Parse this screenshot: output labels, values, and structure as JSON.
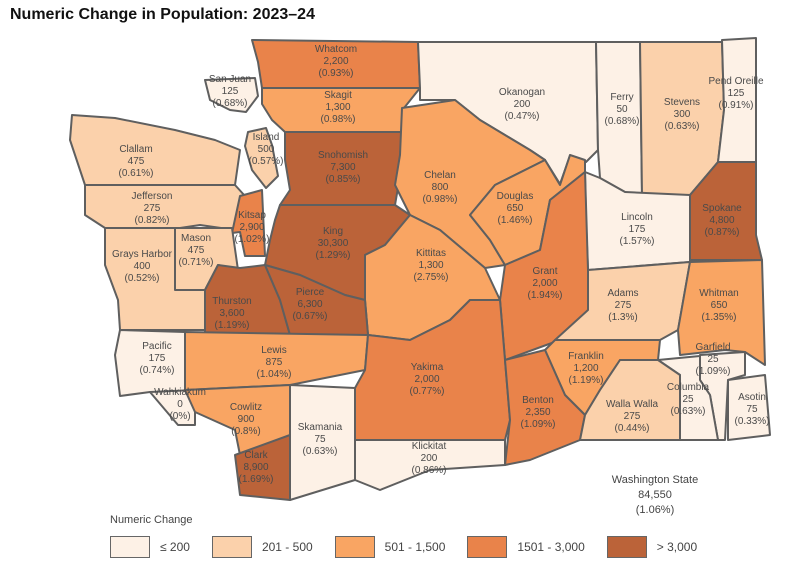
{
  "title": "Numeric Change in Population:  2023–24",
  "bins": [
    {
      "label": "≤ 200",
      "max": 200,
      "color": "#fdf1e6"
    },
    {
      "label": "201 - 500",
      "max": 500,
      "color": "#fbd1ab"
    },
    {
      "label": "501 - 1,500",
      "max": 1500,
      "color": "#f9a563"
    },
    {
      "label": "1501 - 3,000",
      "max": 3000,
      "color": "#e9834a"
    },
    {
      "label": "> 3,000",
      "max": 1000000,
      "color": "#bb6339"
    }
  ],
  "legend_title": "Numeric Change",
  "state": {
    "name": "Washington State",
    "value": "84,550",
    "pct": "(1.06%)"
  },
  "counties": [
    {
      "name": "Whatcom",
      "value": 2200,
      "value_text": "2,200",
      "pct": "(0.93%)"
    },
    {
      "name": "San Juan",
      "value": 125,
      "value_text": "125",
      "pct": "(0.68%)"
    },
    {
      "name": "Skagit",
      "value": 1300,
      "value_text": "1,300",
      "pct": "(0.98%)"
    },
    {
      "name": "Okanogan",
      "value": 200,
      "value_text": "200",
      "pct": "(0.47%)"
    },
    {
      "name": "Ferry",
      "value": 50,
      "value_text": "50",
      "pct": "(0.68%)"
    },
    {
      "name": "Stevens",
      "value": 300,
      "value_text": "300",
      "pct": "(0.63%)"
    },
    {
      "name": "Pend Oreille",
      "value": 125,
      "value_text": "125",
      "pct": "(0.91%)"
    },
    {
      "name": "Island",
      "value": 500,
      "value_text": "500",
      "pct": "(0.57%)"
    },
    {
      "name": "Clallam",
      "value": 475,
      "value_text": "475",
      "pct": "(0.61%)"
    },
    {
      "name": "Snohomish",
      "value": 7300,
      "value_text": "7,300",
      "pct": "(0.85%)"
    },
    {
      "name": "Chelan",
      "value": 800,
      "value_text": "800",
      "pct": "(0.98%)"
    },
    {
      "name": "Douglas",
      "value": 650,
      "value_text": "650",
      "pct": "(1.46%)"
    },
    {
      "name": "Lincoln",
      "value": 175,
      "value_text": "175",
      "pct": "(1.57%)"
    },
    {
      "name": "Spokane",
      "value": 4800,
      "value_text": "4,800",
      "pct": "(0.87%)"
    },
    {
      "name": "Jefferson",
      "value": 275,
      "value_text": "275",
      "pct": "(0.82%)"
    },
    {
      "name": "Kitsap",
      "value": 2900,
      "value_text": "2,900",
      "pct": "(1.02%)"
    },
    {
      "name": "King",
      "value": 30300,
      "value_text": "30,300",
      "pct": "(1.29%)"
    },
    {
      "name": "Mason",
      "value": 475,
      "value_text": "475",
      "pct": "(0.71%)"
    },
    {
      "name": "Grays Harbor",
      "value": 400,
      "value_text": "400",
      "pct": "(0.52%)"
    },
    {
      "name": "Grant",
      "value": 2000,
      "value_text": "2,000",
      "pct": "(1.94%)"
    },
    {
      "name": "Kittitas",
      "value": 1300,
      "value_text": "1,300",
      "pct": "(2.75%)"
    },
    {
      "name": "Adams",
      "value": 275,
      "value_text": "275",
      "pct": "(1.3%)"
    },
    {
      "name": "Whitman",
      "value": 650,
      "value_text": "650",
      "pct": "(1.35%)"
    },
    {
      "name": "Thurston",
      "value": 3600,
      "value_text": "3,600",
      "pct": "(1.19%)"
    },
    {
      "name": "Pierce",
      "value": 6300,
      "value_text": "6,300",
      "pct": "(0.67%)"
    },
    {
      "name": "Pacific",
      "value": 175,
      "value_text": "175",
      "pct": "(0.74%)"
    },
    {
      "name": "Lewis",
      "value": 875,
      "value_text": "875",
      "pct": "(1.04%)"
    },
    {
      "name": "Garfield",
      "value": 25,
      "value_text": "25",
      "pct": "(1.09%)"
    },
    {
      "name": "Franklin",
      "value": 1200,
      "value_text": "1,200",
      "pct": "(1.19%)"
    },
    {
      "name": "Yakima",
      "value": 2000,
      "value_text": "2,000",
      "pct": "(0.77%)"
    },
    {
      "name": "Wahkiakum",
      "value": 0,
      "value_text": "0",
      "pct": "(0%)"
    },
    {
      "name": "Cowlitz",
      "value": 900,
      "value_text": "900",
      "pct": "(0.8%)"
    },
    {
      "name": "Benton",
      "value": 2350,
      "value_text": "2,350",
      "pct": "(1.09%)"
    },
    {
      "name": "Columbia",
      "value": 25,
      "value_text": "25",
      "pct": "(0.63%)"
    },
    {
      "name": "Asotin",
      "value": 75,
      "value_text": "75",
      "pct": "(0.33%)"
    },
    {
      "name": "Walla Walla",
      "value": 275,
      "value_text": "275",
      "pct": "(0.44%)"
    },
    {
      "name": "Skamania",
      "value": 75,
      "value_text": "75",
      "pct": "(0.63%)"
    },
    {
      "name": "Klickitat",
      "value": 200,
      "value_text": "200",
      "pct": "(0.86%)"
    },
    {
      "name": "Clark",
      "value": 8900,
      "value_text": "8,900",
      "pct": "(1.69%)"
    }
  ]
}
